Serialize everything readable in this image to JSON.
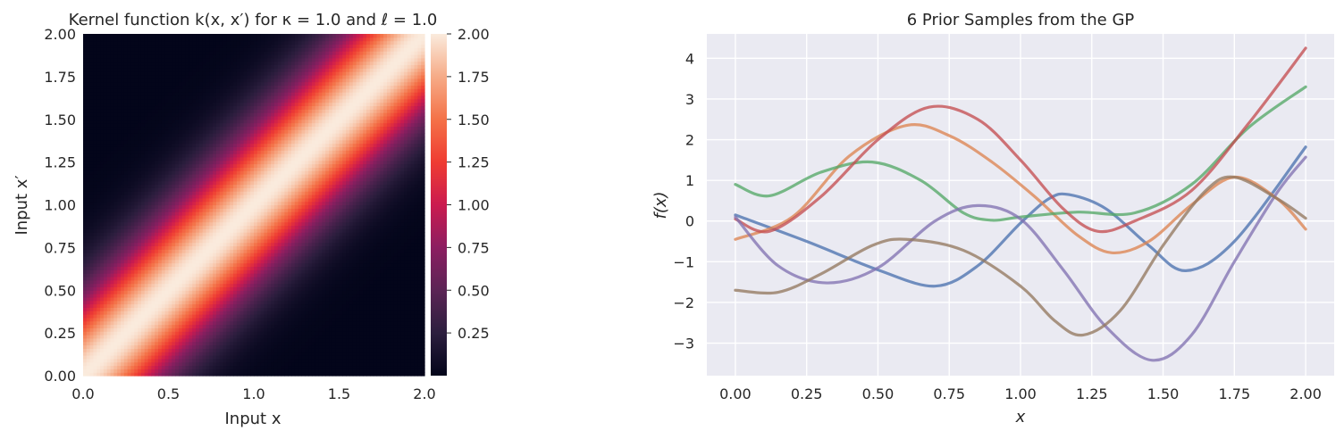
{
  "chart_data": [
    {
      "type": "heatmap",
      "title": "Kernel function k(x, x′) for κ = 1.0 and ℓ = 1.0",
      "xlabel": "Input x",
      "ylabel": "Input x′",
      "xlim": [
        0.0,
        2.0
      ],
      "ylim": [
        0.0,
        2.0
      ],
      "x_ticks": [
        "0.0",
        "0.5",
        "1.0",
        "1.5",
        "2.0"
      ],
      "y_ticks": [
        "0.00",
        "0.25",
        "0.50",
        "0.75",
        "1.00",
        "1.25",
        "1.50",
        "1.75",
        "2.00"
      ],
      "colorbar_ticks": [
        "0.25",
        "0.50",
        "0.75",
        "1.00",
        "1.25",
        "1.50",
        "1.75",
        "2.00"
      ],
      "value_range": [
        0.0,
        2.0
      ],
      "kernel": {
        "kappa": 1.0,
        "length_scale": 1.0,
        "peak": 2.0
      },
      "grid": false
    },
    {
      "type": "line",
      "title": "6 Prior Samples from the GP",
      "xlabel": "x",
      "ylabel": "f(x)",
      "xlim": [
        -0.1,
        2.1
      ],
      "ylim": [
        -3.8,
        4.6
      ],
      "x_ticks": [
        "0.00",
        "0.25",
        "0.50",
        "0.75",
        "1.00",
        "1.25",
        "1.50",
        "1.75",
        "2.00"
      ],
      "y_ticks": [
        "−3",
        "−2",
        "−1",
        "0",
        "1",
        "2",
        "3",
        "4"
      ],
      "grid": true,
      "series": [
        {
          "color": "#4C72B0",
          "points": [
            [
              0,
              0.15
            ],
            [
              0.25,
              -0.5
            ],
            [
              0.5,
              -1.2
            ],
            [
              0.7,
              -1.6
            ],
            [
              0.85,
              -1.1
            ],
            [
              1.0,
              -0.05
            ],
            [
              1.1,
              0.55
            ],
            [
              1.17,
              0.65
            ],
            [
              1.3,
              0.3
            ],
            [
              1.45,
              -0.6
            ],
            [
              1.58,
              -1.22
            ],
            [
              1.75,
              -0.5
            ],
            [
              2.0,
              1.82
            ]
          ]
        },
        {
          "color": "#DD8452",
          "points": [
            [
              0,
              -0.45
            ],
            [
              0.2,
              0.1
            ],
            [
              0.4,
              1.6
            ],
            [
              0.6,
              2.35
            ],
            [
              0.75,
              2.1
            ],
            [
              0.9,
              1.45
            ],
            [
              1.05,
              0.6
            ],
            [
              1.2,
              -0.35
            ],
            [
              1.32,
              -0.78
            ],
            [
              1.45,
              -0.5
            ],
            [
              1.6,
              0.4
            ],
            [
              1.75,
              1.08
            ],
            [
              1.9,
              0.55
            ],
            [
              2.0,
              -0.2
            ]
          ]
        },
        {
          "color": "#55A868",
          "points": [
            [
              0,
              0.9
            ],
            [
              0.12,
              0.62
            ],
            [
              0.3,
              1.2
            ],
            [
              0.48,
              1.45
            ],
            [
              0.65,
              1.0
            ],
            [
              0.8,
              0.2
            ],
            [
              0.9,
              0.02
            ],
            [
              1.0,
              0.1
            ],
            [
              1.2,
              0.22
            ],
            [
              1.4,
              0.2
            ],
            [
              1.6,
              0.9
            ],
            [
              1.8,
              2.3
            ],
            [
              2.0,
              3.3
            ]
          ]
        },
        {
          "color": "#C44E52",
          "points": [
            [
              0,
              0.05
            ],
            [
              0.12,
              -0.25
            ],
            [
              0.3,
              0.6
            ],
            [
              0.5,
              2.0
            ],
            [
              0.68,
              2.8
            ],
            [
              0.85,
              2.5
            ],
            [
              1.0,
              1.5
            ],
            [
              1.15,
              0.3
            ],
            [
              1.27,
              -0.25
            ],
            [
              1.4,
              0.0
            ],
            [
              1.6,
              0.75
            ],
            [
              1.8,
              2.4
            ],
            [
              2.0,
              4.25
            ]
          ]
        },
        {
          "color": "#8172B2",
          "points": [
            [
              0,
              0.1
            ],
            [
              0.15,
              -1.1
            ],
            [
              0.32,
              -1.52
            ],
            [
              0.5,
              -1.15
            ],
            [
              0.7,
              0.0
            ],
            [
              0.85,
              0.38
            ],
            [
              1.0,
              0.05
            ],
            [
              1.15,
              -1.2
            ],
            [
              1.3,
              -2.6
            ],
            [
              1.46,
              -3.42
            ],
            [
              1.6,
              -2.8
            ],
            [
              1.75,
              -1.0
            ],
            [
              1.9,
              0.7
            ],
            [
              2.0,
              1.57
            ]
          ]
        },
        {
          "color": "#937860",
          "points": [
            [
              0,
              -1.7
            ],
            [
              0.15,
              -1.75
            ],
            [
              0.3,
              -1.3
            ],
            [
              0.48,
              -0.6
            ],
            [
              0.6,
              -0.45
            ],
            [
              0.8,
              -0.72
            ],
            [
              1.0,
              -1.6
            ],
            [
              1.12,
              -2.45
            ],
            [
              1.22,
              -2.8
            ],
            [
              1.35,
              -2.2
            ],
            [
              1.5,
              -0.6
            ],
            [
              1.65,
              0.75
            ],
            [
              1.75,
              1.08
            ],
            [
              1.9,
              0.55
            ],
            [
              2.0,
              0.07
            ]
          ]
        }
      ]
    }
  ]
}
